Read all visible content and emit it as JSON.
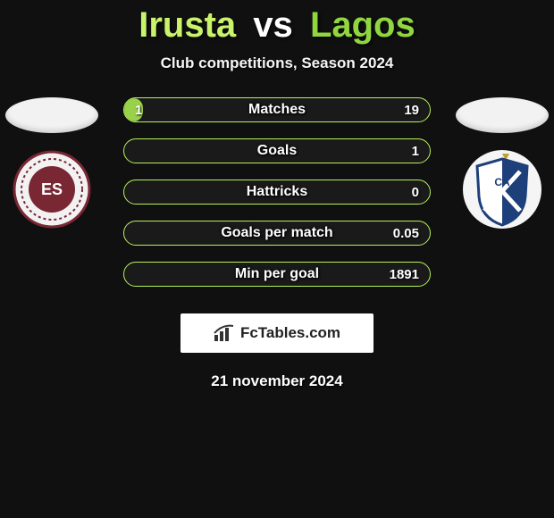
{
  "colors": {
    "background": "#101010",
    "title_left": "#c9f36a",
    "title_mid": "#ffffff",
    "title_right": "#8fd63f",
    "row_border": "#b7f05a",
    "row_fill": "#9ad14a",
    "brand_bg": "#ffffff",
    "badge_left_primary": "#7a2734",
    "badge_right_primary": "#1d3f7a",
    "badge_right_accent": "#bfa032"
  },
  "title": {
    "left": "Irusta",
    "vs": "vs",
    "right": "Lagos"
  },
  "subtitle": "Club competitions, Season 2024",
  "rows": [
    {
      "label": "Matches",
      "left": "1",
      "right": "19",
      "fill_pct": 6
    },
    {
      "label": "Goals",
      "left": "",
      "right": "1",
      "fill_pct": 0
    },
    {
      "label": "Hattricks",
      "left": "",
      "right": "0",
      "fill_pct": 0
    },
    {
      "label": "Goals per match",
      "left": "",
      "right": "0.05",
      "fill_pct": 0
    },
    {
      "label": "Min per goal",
      "left": "",
      "right": "1891",
      "fill_pct": 0
    }
  ],
  "branding": "FcTables.com",
  "date": "21 november 2024"
}
